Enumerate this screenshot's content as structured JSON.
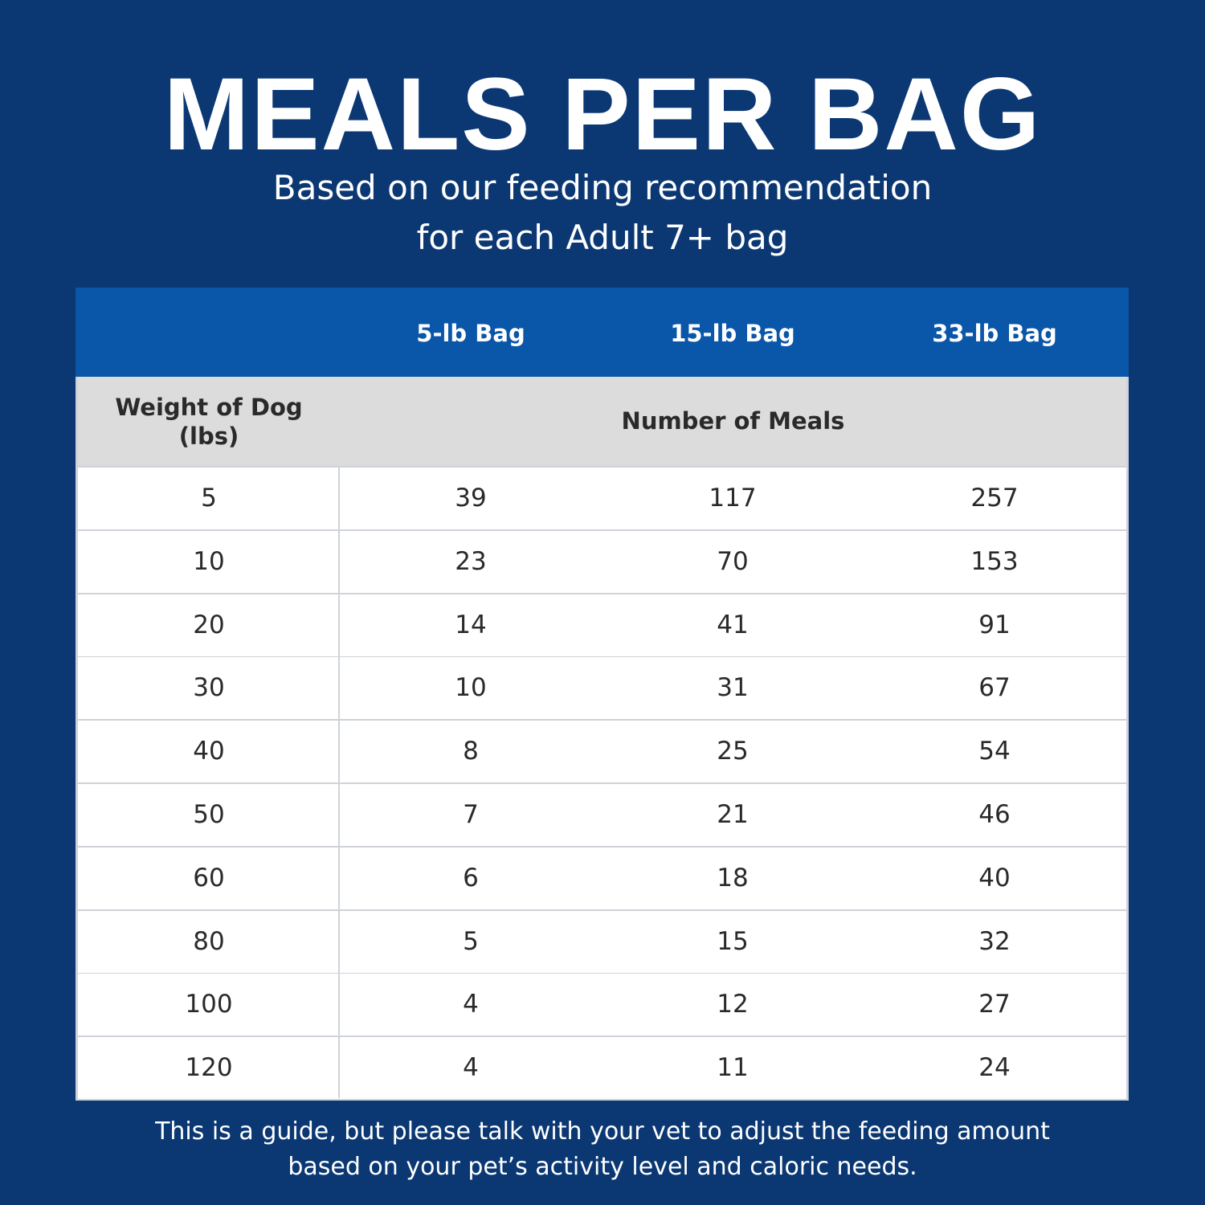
{
  "header": {
    "title": "MEALS PER BAG",
    "subtitle_lines": [
      "Based on our feeding recommendation",
      "for each Adult 7+ bag"
    ]
  },
  "table": {
    "bag_headers": [
      "5-lb Bag",
      "15-lb Bag",
      "33-lb Bag"
    ],
    "row_header": "Weight of Dog (lbs)",
    "group_header": "Number of Meals",
    "rows": [
      [
        5,
        39,
        117,
        257
      ],
      [
        10,
        23,
        70,
        153
      ],
      [
        20,
        14,
        41,
        91
      ],
      [
        30,
        10,
        31,
        67
      ],
      [
        40,
        8,
        25,
        54
      ],
      [
        50,
        7,
        21,
        46
      ],
      [
        60,
        6,
        18,
        40
      ],
      [
        80,
        5,
        15,
        32
      ],
      [
        100,
        4,
        12,
        27
      ],
      [
        120,
        4,
        11,
        24
      ]
    ]
  },
  "footer": {
    "lines": [
      "This is a guide, but please talk with your vet to adjust the feeding amount",
      "based on your pet’s activity level and caloric needs."
    ]
  }
}
